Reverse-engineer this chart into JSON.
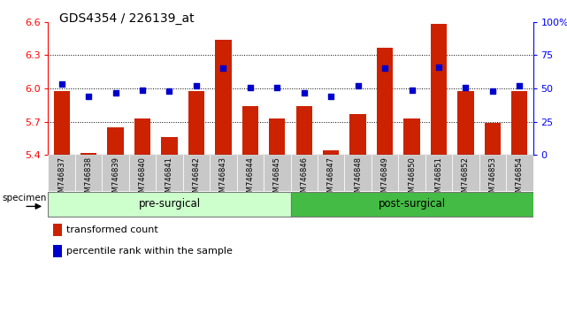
{
  "title": "GDS4354 / 226139_at",
  "samples": [
    "GSM746837",
    "GSM746838",
    "GSM746839",
    "GSM746840",
    "GSM746841",
    "GSM746842",
    "GSM746843",
    "GSM746844",
    "GSM746845",
    "GSM746846",
    "GSM746847",
    "GSM746848",
    "GSM746849",
    "GSM746850",
    "GSM746851",
    "GSM746852",
    "GSM746853",
    "GSM746854"
  ],
  "bar_values": [
    5.98,
    5.42,
    5.65,
    5.73,
    5.56,
    5.98,
    6.44,
    5.84,
    5.73,
    5.84,
    5.44,
    5.77,
    6.37,
    5.73,
    6.58,
    5.98,
    5.69,
    5.98
  ],
  "blue_values": [
    53,
    44,
    47,
    49,
    48,
    52,
    65,
    51,
    51,
    47,
    44,
    52,
    65,
    49,
    66,
    51,
    48,
    52
  ],
  "pre_surgical_count": 9,
  "post_surgical_count": 9,
  "bar_color": "#cc2200",
  "blue_color": "#0000cc",
  "pre_color": "#ccffcc",
  "post_color": "#44bb44",
  "ylim_left": [
    5.4,
    6.6
  ],
  "ylim_right": [
    0,
    100
  ],
  "yticks_left": [
    5.4,
    5.7,
    6.0,
    6.3,
    6.6
  ],
  "yticks_right": [
    0,
    25,
    50,
    75,
    100
  ],
  "ytick_labels_right": [
    "0",
    "25",
    "50",
    "75",
    "100%"
  ],
  "grid_values": [
    5.7,
    6.0,
    6.3
  ],
  "bar_width": 0.6,
  "specimen_label": "specimen",
  "pre_label": "pre-surgical",
  "post_label": "post-surgical"
}
